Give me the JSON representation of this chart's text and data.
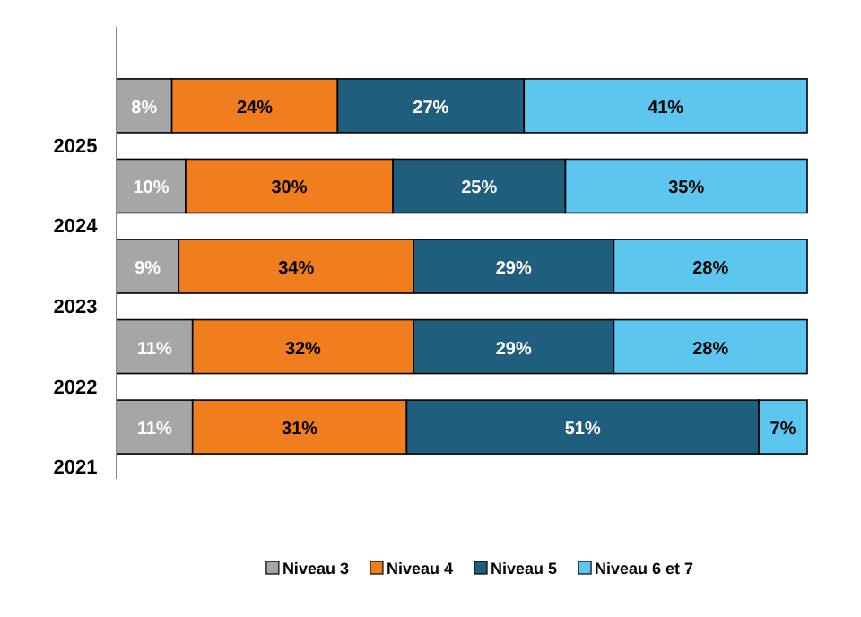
{
  "chart_data": {
    "type": "bar",
    "orientation": "horizontal",
    "stacked": true,
    "categories": [
      "2025",
      "2024",
      "2023",
      "2022",
      "2021"
    ],
    "series": [
      {
        "name": "Niveau 3",
        "color": "#a6a6a6",
        "values": [
          8,
          10,
          9,
          11,
          11
        ],
        "value_labels": [
          "8%",
          "10%",
          "9%",
          "11%",
          "11%"
        ]
      },
      {
        "name": "Niveau 4",
        "color": "#f07d1e",
        "values": [
          24,
          30,
          34,
          32,
          31
        ],
        "value_labels": [
          "24%",
          "30%",
          "34%",
          "32%",
          "31%"
        ]
      },
      {
        "name": "Niveau 5",
        "color": "#1f5e7c",
        "values": [
          27,
          25,
          29,
          29,
          51
        ],
        "value_labels": [
          "27%",
          "25%",
          "29%",
          "29%",
          "51%"
        ]
      },
      {
        "name": "Niveau 6 et 7",
        "color": "#5cc6ef",
        "values": [
          41,
          35,
          28,
          28,
          7
        ],
        "value_labels": [
          "41%",
          "35%",
          "28%",
          "28%",
          "7%"
        ]
      }
    ],
    "tick_labels": "y",
    "legend": "bottom"
  }
}
